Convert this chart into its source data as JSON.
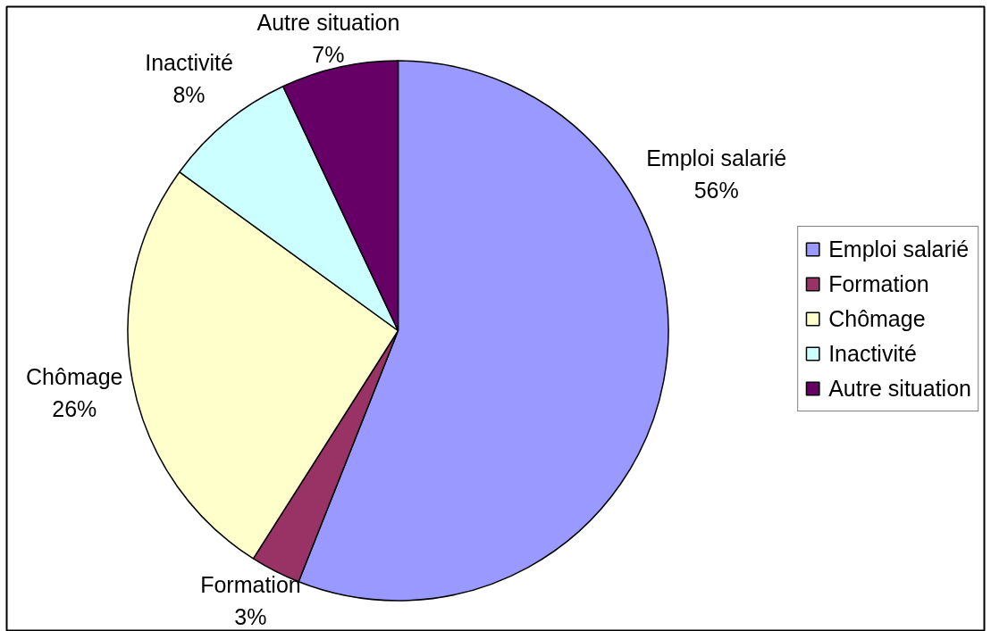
{
  "chart_data": {
    "type": "pie",
    "categories": [
      "Emploi salarié",
      "Formation",
      "Chômage",
      "Inactivité",
      "Autre situation"
    ],
    "values": [
      56,
      3,
      26,
      8,
      7
    ],
    "colors": [
      "#9999ff",
      "#993366",
      "#ffffcc",
      "#ccffff",
      "#660066"
    ],
    "value_labels": [
      "56%",
      "3%",
      "26%",
      "8%",
      "7%"
    ],
    "legend": "right"
  }
}
